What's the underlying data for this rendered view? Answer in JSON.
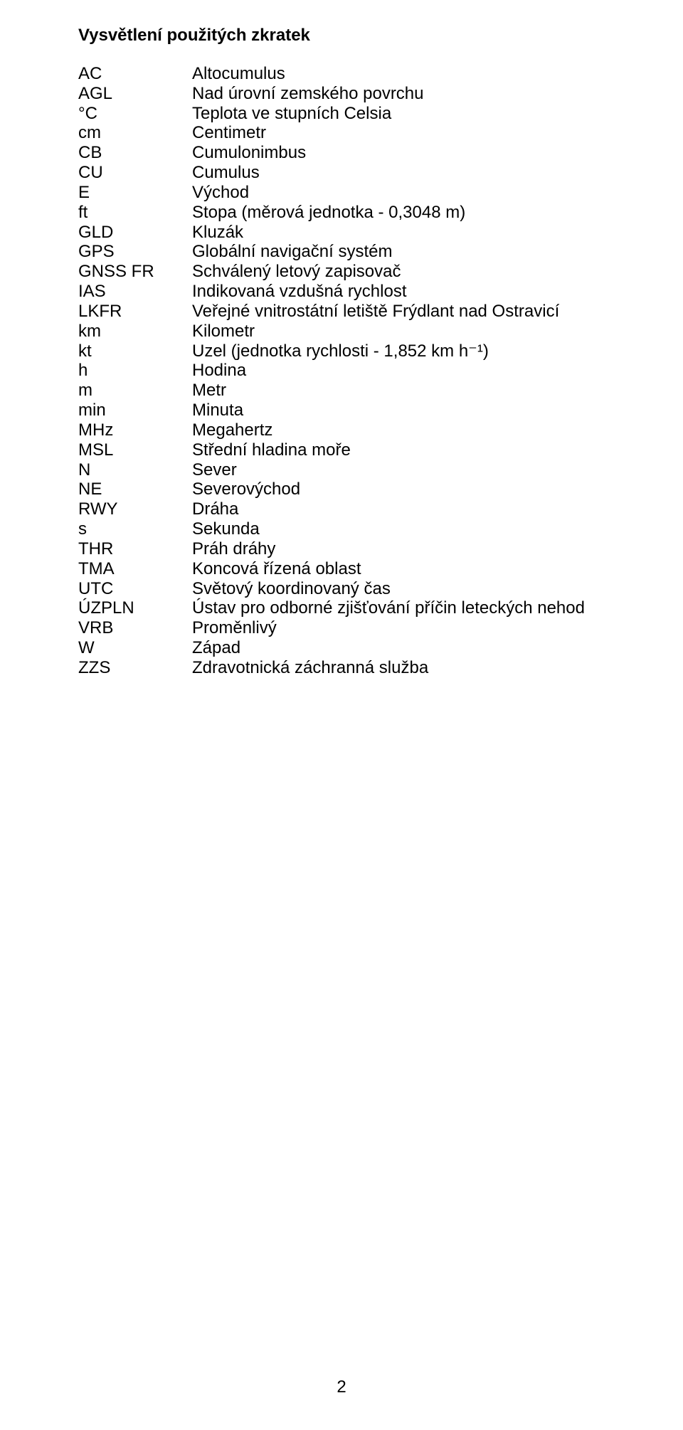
{
  "heading": "Vysvětlení použitých zkratek",
  "page_number": "2",
  "rows": [
    {
      "abbr": "AC",
      "def": "Altocumulus"
    },
    {
      "abbr": "AGL",
      "def": "Nad úrovní zemského povrchu"
    },
    {
      "abbr": "°C",
      "def": "Teplota ve stupních Celsia"
    },
    {
      "abbr": "cm",
      "def": "Centimetr"
    },
    {
      "abbr": "CB",
      "def": "Cumulonimbus"
    },
    {
      "abbr": "CU",
      "def": "Cumulus"
    },
    {
      "abbr": "E",
      "def": "Východ"
    },
    {
      "abbr": "ft",
      "def": "Stopa (měrová jednotka - 0,3048 m)"
    },
    {
      "abbr": "GLD",
      "def": "Kluzák"
    },
    {
      "abbr": "GPS",
      "def": "Globální navigační systém"
    },
    {
      "abbr": "GNSS FR",
      "def": "Schválený letový zapisovač"
    },
    {
      "abbr": "IAS",
      "def": "Indikovaná vzdušná rychlost"
    },
    {
      "abbr": "LKFR",
      "def": "Veřejné vnitrostátní letiště Frýdlant nad Ostravicí"
    },
    {
      "abbr": "km",
      "def": "Kilometr"
    },
    {
      "abbr": "kt",
      "def": "Uzel (jednotka rychlosti - 1,852 km h⁻¹)"
    },
    {
      "abbr": "h",
      "def": "Hodina"
    },
    {
      "abbr": "m",
      "def": "Metr"
    },
    {
      "abbr": "min",
      "def": "Minuta"
    },
    {
      "abbr": "MHz",
      "def": "Megahertz"
    },
    {
      "abbr": "MSL",
      "def": "Střední hladina moře"
    },
    {
      "abbr": "N",
      "def": "Sever"
    },
    {
      "abbr": "NE",
      "def": "Severovýchod"
    },
    {
      "abbr": "RWY",
      "def": "Dráha"
    },
    {
      "abbr": "s",
      "def": "Sekunda"
    },
    {
      "abbr": "THR",
      "def": "Práh dráhy"
    },
    {
      "abbr": "TMA",
      "def": "Koncová řízená oblast"
    },
    {
      "abbr": "UTC",
      "def": "Světový koordinovaný čas"
    },
    {
      "abbr": "ÚZPLN",
      "def": "Ústav pro odborné zjišťování příčin leteckých nehod"
    },
    {
      "abbr": "VRB",
      "def": "Proměnlivý"
    },
    {
      "abbr": "W",
      "def": "Západ"
    },
    {
      "abbr": "ZZS",
      "def": "Zdravotnická záchranná služba"
    }
  ]
}
